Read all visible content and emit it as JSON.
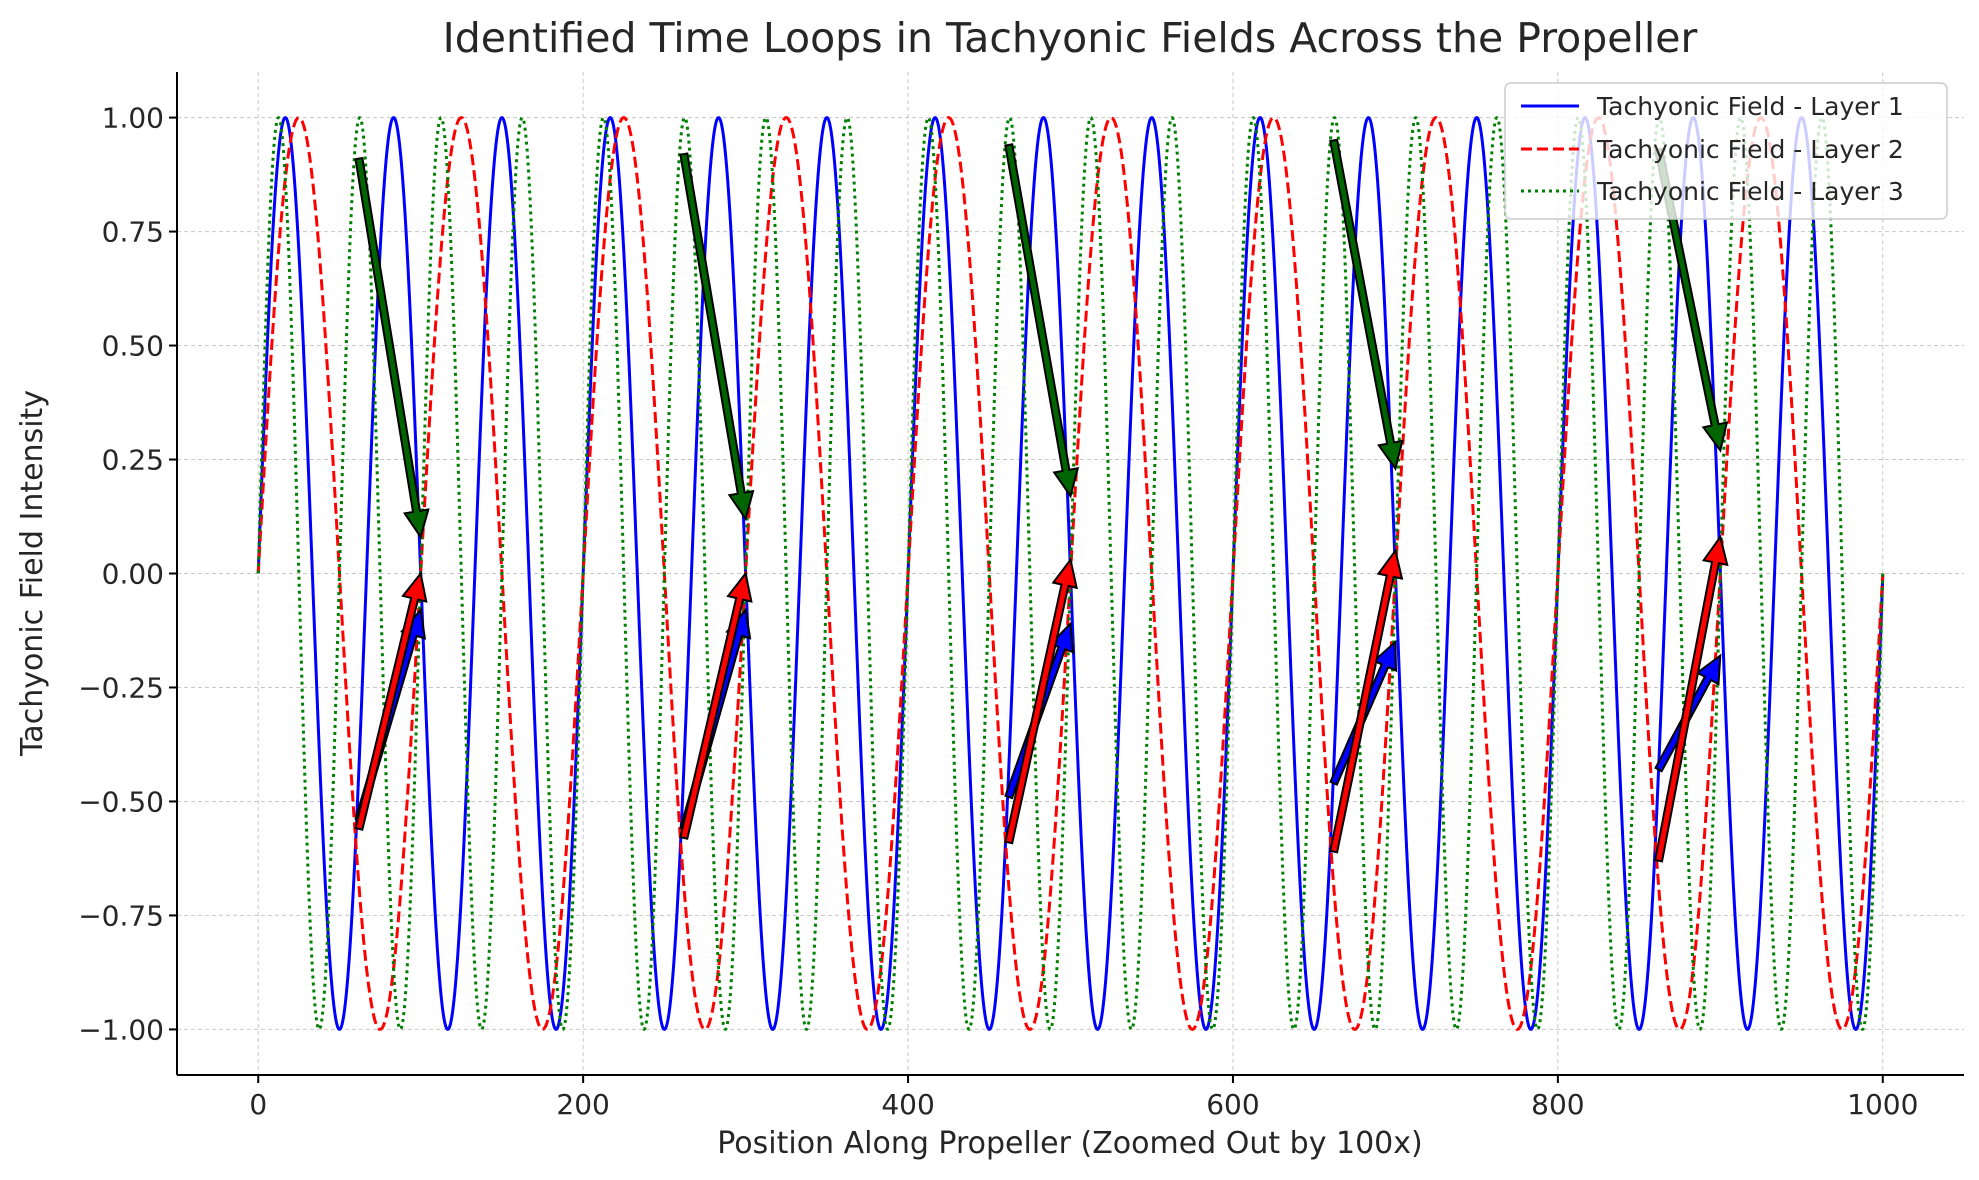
{
  "chart_data": {
    "type": "line",
    "title": "Identified Time Loops in Tachyonic Fields Across the Propeller",
    "xlabel": "Position Along Propeller (Zoomed Out by 100x)",
    "ylabel": "Tachyonic Field Intensity",
    "xlim": [
      -50,
      1050
    ],
    "ylim": [
      -1.1,
      1.1
    ],
    "x_ticks": [
      0,
      200,
      400,
      600,
      800,
      1000
    ],
    "x_tick_labels": [
      "0",
      "200",
      "400",
      "600",
      "800",
      "1000"
    ],
    "y_ticks": [
      1.0,
      0.75,
      0.5,
      0.25,
      0.0,
      -0.25,
      -0.5,
      -0.75,
      -1.0
    ],
    "y_tick_labels": [
      "1.00",
      "0.75",
      "0.50",
      "0.25",
      "0.00",
      "−0.25",
      "−0.50",
      "−0.75",
      "−1.00"
    ],
    "grid": true,
    "legend_position": "top-right",
    "x_range": [
      0,
      1000
    ],
    "series": [
      {
        "name": "Tachyonic Field - Layer 1",
        "function": "sin",
        "period": 66.67,
        "color": "#0000ff",
        "line_style": "solid"
      },
      {
        "name": "Tachyonic Field - Layer 2",
        "function": "sin",
        "period": 100,
        "color": "#ff0000",
        "line_style": "dashed"
      },
      {
        "name": "Tachyonic Field - Layer 3",
        "function": "sin",
        "period": 50,
        "color": "#008000",
        "line_style": "dotted"
      }
    ],
    "annotation_arrows": [
      {
        "color": "#006400",
        "from": [
          62,
          0.91
        ],
        "to": [
          100,
          0.08
        ]
      },
      {
        "color": "#0000ff",
        "from": [
          62,
          -0.54
        ],
        "to": [
          100,
          -0.08
        ]
      },
      {
        "color": "#ff0000",
        "from": [
          62,
          -0.56
        ],
        "to": [
          100,
          0.0
        ]
      },
      {
        "color": "#006400",
        "from": [
          262,
          0.92
        ],
        "to": [
          300,
          0.12
        ]
      },
      {
        "color": "#0000ff",
        "from": [
          262,
          -0.56
        ],
        "to": [
          300,
          -0.08
        ]
      },
      {
        "color": "#ff0000",
        "from": [
          262,
          -0.58
        ],
        "to": [
          300,
          0.0
        ]
      },
      {
        "color": "#006400",
        "from": [
          462,
          0.94
        ],
        "to": [
          500,
          0.17
        ]
      },
      {
        "color": "#0000ff",
        "from": [
          462,
          -0.49
        ],
        "to": [
          500,
          -0.11
        ]
      },
      {
        "color": "#ff0000",
        "from": [
          462,
          -0.59
        ],
        "to": [
          500,
          0.03
        ]
      },
      {
        "color": "#006400",
        "from": [
          662,
          0.95
        ],
        "to": [
          700,
          0.23
        ]
      },
      {
        "color": "#0000ff",
        "from": [
          662,
          -0.46
        ],
        "to": [
          700,
          -0.15
        ]
      },
      {
        "color": "#ff0000",
        "from": [
          662,
          -0.61
        ],
        "to": [
          700,
          0.05
        ]
      },
      {
        "color": "#006400",
        "from": [
          862,
          0.93
        ],
        "to": [
          900,
          0.27
        ]
      },
      {
        "color": "#0000ff",
        "from": [
          862,
          -0.43
        ],
        "to": [
          900,
          -0.18
        ]
      },
      {
        "color": "#ff0000",
        "from": [
          862,
          -0.63
        ],
        "to": [
          900,
          0.08
        ]
      }
    ]
  }
}
